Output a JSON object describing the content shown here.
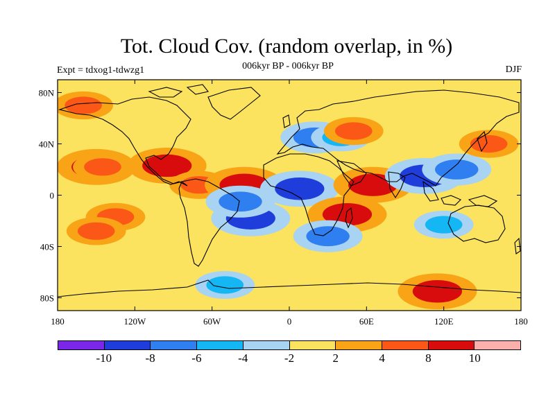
{
  "title": "Tot. Cloud Cov. (random overlap, in %)",
  "subtitle": "006kyr BP - 006kyr BP",
  "experiment": "Expt = tdxog1-tdwzg1",
  "season": "DJF",
  "background_color": "#fbe35f",
  "lat_ticks": [
    "80N",
    "40N",
    "0",
    "40S",
    "80S"
  ],
  "lon_ticks": [
    "180",
    "120W",
    "60W",
    "0",
    "60E",
    "120E",
    "180"
  ],
  "colorbar": {
    "colors": [
      "#7b27e8",
      "#1f3ddb",
      "#2f7ff0",
      "#14b6f4",
      "#a8d3f2",
      "#fbe35f",
      "#f8a416",
      "#fb5716",
      "#d80c0c",
      "#fbb0ac"
    ],
    "labels": [
      "-10",
      "-8",
      "-6",
      "-4",
      "-2",
      "2",
      "4",
      "8",
      "10"
    ]
  },
  "chart_data": {
    "type": "heatmap",
    "title": "Tot. Cloud Cov. (random overlap, in %)",
    "subtitle": "006kyr BP - 006kyr BP",
    "x_range": [
      -180,
      180
    ],
    "y_range": [
      -90,
      90
    ],
    "x_ticks": [
      "180",
      "120W",
      "60W",
      "0",
      "60E",
      "120E",
      "180"
    ],
    "y_ticks": [
      "80N",
      "40N",
      "0",
      "40S",
      "80S"
    ],
    "levels": [
      -10,
      -8,
      -6,
      -4,
      -2,
      2,
      4,
      8,
      10
    ],
    "anomaly_patches": [
      {
        "lon": -150,
        "lat": 22,
        "level": 8
      },
      {
        "lon": -145,
        "lat": 22,
        "level": 4
      },
      {
        "lon": -135,
        "lat": -17,
        "level": 4
      },
      {
        "lon": -150,
        "lat": -28,
        "level": 4
      },
      {
        "lon": -95,
        "lat": 23,
        "level": 8
      },
      {
        "lon": -70,
        "lat": 8,
        "level": 4
      },
      {
        "lon": -35,
        "lat": 8,
        "level": 8
      },
      {
        "lon": -30,
        "lat": -18,
        "level": -8
      },
      {
        "lon": -38,
        "lat": -5,
        "level": -6
      },
      {
        "lon": 8,
        "lat": 5,
        "level": -8
      },
      {
        "lon": 20,
        "lat": 45,
        "level": -6
      },
      {
        "lon": 40,
        "lat": 45,
        "level": -4
      },
      {
        "lon": 50,
        "lat": 50,
        "level": 4
      },
      {
        "lon": 65,
        "lat": 8,
        "level": 8
      },
      {
        "lon": 45,
        "lat": -15,
        "level": 8
      },
      {
        "lon": 30,
        "lat": -32,
        "level": -6
      },
      {
        "lon": 105,
        "lat": 15,
        "level": -8
      },
      {
        "lon": 130,
        "lat": 20,
        "level": -6
      },
      {
        "lon": 120,
        "lat": -23,
        "level": -4
      },
      {
        "lon": 115,
        "lat": -75,
        "level": 8
      },
      {
        "lon": -50,
        "lat": -70,
        "level": -4
      },
      {
        "lon": -160,
        "lat": 70,
        "level": 4
      },
      {
        "lon": 155,
        "lat": 40,
        "level": 4
      }
    ]
  }
}
